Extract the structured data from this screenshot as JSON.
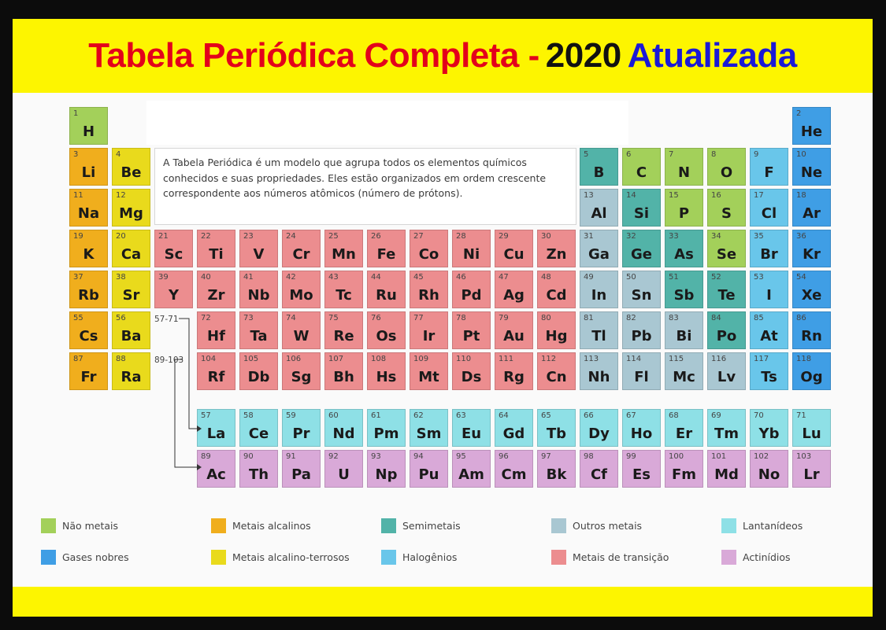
{
  "title": {
    "part1": "Tabela Periódica Completa -",
    "part2": "2020",
    "part3": "Atualizada"
  },
  "description": "A Tabela Periódica é um modelo que agrupa todos os elementos químicos conhecidos e suas propriedades. Eles estão organizados em ordem crescente correspondente aos números atômicos (número de prótons).",
  "ranges": {
    "lanthanides": "57-71",
    "actinides": "89-103"
  },
  "category_colors": {
    "nonmetal": "#a3d05a",
    "alkali": "#f0ae1d",
    "metalloid": "#52b3a8",
    "other_metal": "#a9c7d2",
    "lanthanide": "#8ee0e6",
    "noble_gas": "#3f9ee5",
    "alkaline_earth": "#e9da1c",
    "halogen": "#69c6ea",
    "transition": "#ec8d8f",
    "actinide": "#d9a9d8"
  },
  "legend": [
    {
      "key": "nonmetal",
      "label": "Não metais"
    },
    {
      "key": "alkali",
      "label": "Metais alcalinos"
    },
    {
      "key": "metalloid",
      "label": "Semimetais"
    },
    {
      "key": "other_metal",
      "label": "Outros metais"
    },
    {
      "key": "lanthanide",
      "label": "Lantanídeos"
    },
    {
      "key": "noble_gas",
      "label": "Gases nobres"
    },
    {
      "key": "alkaline_earth",
      "label": "Metais alcalino-terrosos"
    },
    {
      "key": "halogen",
      "label": "Halogênios"
    },
    {
      "key": "transition",
      "label": "Metais de transição"
    },
    {
      "key": "actinide",
      "label": "Actinídios"
    }
  ],
  "elements": [
    {
      "n": 1,
      "s": "H",
      "c": "nonmetal",
      "row": 1,
      "col": 1
    },
    {
      "n": 2,
      "s": "He",
      "c": "noble_gas",
      "row": 1,
      "col": 18
    },
    {
      "n": 3,
      "s": "Li",
      "c": "alkali",
      "row": 2,
      "col": 1
    },
    {
      "n": 4,
      "s": "Be",
      "c": "alkaline_earth",
      "row": 2,
      "col": 2
    },
    {
      "n": 5,
      "s": "B",
      "c": "metalloid",
      "row": 2,
      "col": 13
    },
    {
      "n": 6,
      "s": "C",
      "c": "nonmetal",
      "row": 2,
      "col": 14
    },
    {
      "n": 7,
      "s": "N",
      "c": "nonmetal",
      "row": 2,
      "col": 15
    },
    {
      "n": 8,
      "s": "O",
      "c": "nonmetal",
      "row": 2,
      "col": 16
    },
    {
      "n": 9,
      "s": "F",
      "c": "halogen",
      "row": 2,
      "col": 17
    },
    {
      "n": 10,
      "s": "Ne",
      "c": "noble_gas",
      "row": 2,
      "col": 18
    },
    {
      "n": 11,
      "s": "Na",
      "c": "alkali",
      "row": 3,
      "col": 1
    },
    {
      "n": 12,
      "s": "Mg",
      "c": "alkaline_earth",
      "row": 3,
      "col": 2
    },
    {
      "n": 13,
      "s": "Al",
      "c": "other_metal",
      "row": 3,
      "col": 13
    },
    {
      "n": 14,
      "s": "Si",
      "c": "metalloid",
      "row": 3,
      "col": 14
    },
    {
      "n": 15,
      "s": "P",
      "c": "nonmetal",
      "row": 3,
      "col": 15
    },
    {
      "n": 16,
      "s": "S",
      "c": "nonmetal",
      "row": 3,
      "col": 16
    },
    {
      "n": 17,
      "s": "Cl",
      "c": "halogen",
      "row": 3,
      "col": 17
    },
    {
      "n": 18,
      "s": "Ar",
      "c": "noble_gas",
      "row": 3,
      "col": 18
    },
    {
      "n": 19,
      "s": "K",
      "c": "alkali",
      "row": 4,
      "col": 1
    },
    {
      "n": 20,
      "s": "Ca",
      "c": "alkaline_earth",
      "row": 4,
      "col": 2
    },
    {
      "n": 21,
      "s": "Sc",
      "c": "transition",
      "row": 4,
      "col": 3
    },
    {
      "n": 22,
      "s": "Ti",
      "c": "transition",
      "row": 4,
      "col": 4
    },
    {
      "n": 23,
      "s": "V",
      "c": "transition",
      "row": 4,
      "col": 5
    },
    {
      "n": 24,
      "s": "Cr",
      "c": "transition",
      "row": 4,
      "col": 6
    },
    {
      "n": 25,
      "s": "Mn",
      "c": "transition",
      "row": 4,
      "col": 7
    },
    {
      "n": 26,
      "s": "Fe",
      "c": "transition",
      "row": 4,
      "col": 8
    },
    {
      "n": 27,
      "s": "Co",
      "c": "transition",
      "row": 4,
      "col": 9
    },
    {
      "n": 28,
      "s": "Ni",
      "c": "transition",
      "row": 4,
      "col": 10
    },
    {
      "n": 29,
      "s": "Cu",
      "c": "transition",
      "row": 4,
      "col": 11
    },
    {
      "n": 30,
      "s": "Zn",
      "c": "transition",
      "row": 4,
      "col": 12
    },
    {
      "n": 31,
      "s": "Ga",
      "c": "other_metal",
      "row": 4,
      "col": 13
    },
    {
      "n": 32,
      "s": "Ge",
      "c": "metalloid",
      "row": 4,
      "col": 14
    },
    {
      "n": 33,
      "s": "As",
      "c": "metalloid",
      "row": 4,
      "col": 15
    },
    {
      "n": 34,
      "s": "Se",
      "c": "nonmetal",
      "row": 4,
      "col": 16
    },
    {
      "n": 35,
      "s": "Br",
      "c": "halogen",
      "row": 4,
      "col": 17
    },
    {
      "n": 36,
      "s": "Kr",
      "c": "noble_gas",
      "row": 4,
      "col": 18
    },
    {
      "n": 37,
      "s": "Rb",
      "c": "alkali",
      "row": 5,
      "col": 1
    },
    {
      "n": 38,
      "s": "Sr",
      "c": "alkaline_earth",
      "row": 5,
      "col": 2
    },
    {
      "n": 39,
      "s": "Y",
      "c": "transition",
      "row": 5,
      "col": 3
    },
    {
      "n": 40,
      "s": "Zr",
      "c": "transition",
      "row": 5,
      "col": 4
    },
    {
      "n": 41,
      "s": "Nb",
      "c": "transition",
      "row": 5,
      "col": 5
    },
    {
      "n": 42,
      "s": "Mo",
      "c": "transition",
      "row": 5,
      "col": 6
    },
    {
      "n": 43,
      "s": "Tc",
      "c": "transition",
      "row": 5,
      "col": 7
    },
    {
      "n": 44,
      "s": "Ru",
      "c": "transition",
      "row": 5,
      "col": 8
    },
    {
      "n": 45,
      "s": "Rh",
      "c": "transition",
      "row": 5,
      "col": 9
    },
    {
      "n": 46,
      "s": "Pd",
      "c": "transition",
      "row": 5,
      "col": 10
    },
    {
      "n": 47,
      "s": "Ag",
      "c": "transition",
      "row": 5,
      "col": 11
    },
    {
      "n": 48,
      "s": "Cd",
      "c": "transition",
      "row": 5,
      "col": 12
    },
    {
      "n": 49,
      "s": "In",
      "c": "other_metal",
      "row": 5,
      "col": 13
    },
    {
      "n": 50,
      "s": "Sn",
      "c": "other_metal",
      "row": 5,
      "col": 14
    },
    {
      "n": 51,
      "s": "Sb",
      "c": "metalloid",
      "row": 5,
      "col": 15
    },
    {
      "n": 52,
      "s": "Te",
      "c": "metalloid",
      "row": 5,
      "col": 16
    },
    {
      "n": 53,
      "s": "I",
      "c": "halogen",
      "row": 5,
      "col": 17
    },
    {
      "n": 54,
      "s": "Xe",
      "c": "noble_gas",
      "row": 5,
      "col": 18
    },
    {
      "n": 55,
      "s": "Cs",
      "c": "alkali",
      "row": 6,
      "col": 1
    },
    {
      "n": 56,
      "s": "Ba",
      "c": "alkaline_earth",
      "row": 6,
      "col": 2
    },
    {
      "n": 72,
      "s": "Hf",
      "c": "transition",
      "row": 6,
      "col": 4
    },
    {
      "n": 73,
      "s": "Ta",
      "c": "transition",
      "row": 6,
      "col": 5
    },
    {
      "n": 74,
      "s": "W",
      "c": "transition",
      "row": 6,
      "col": 6
    },
    {
      "n": 75,
      "s": "Re",
      "c": "transition",
      "row": 6,
      "col": 7
    },
    {
      "n": 76,
      "s": "Os",
      "c": "transition",
      "row": 6,
      "col": 8
    },
    {
      "n": 77,
      "s": "Ir",
      "c": "transition",
      "row": 6,
      "col": 9
    },
    {
      "n": 78,
      "s": "Pt",
      "c": "transition",
      "row": 6,
      "col": 10
    },
    {
      "n": 79,
      "s": "Au",
      "c": "transition",
      "row": 6,
      "col": 11
    },
    {
      "n": 80,
      "s": "Hg",
      "c": "transition",
      "row": 6,
      "col": 12
    },
    {
      "n": 81,
      "s": "Tl",
      "c": "other_metal",
      "row": 6,
      "col": 13
    },
    {
      "n": 82,
      "s": "Pb",
      "c": "other_metal",
      "row": 6,
      "col": 14
    },
    {
      "n": 83,
      "s": "Bi",
      "c": "other_metal",
      "row": 6,
      "col": 15
    },
    {
      "n": 84,
      "s": "Po",
      "c": "metalloid",
      "row": 6,
      "col": 16
    },
    {
      "n": 85,
      "s": "At",
      "c": "halogen",
      "row": 6,
      "col": 17
    },
    {
      "n": 86,
      "s": "Rn",
      "c": "noble_gas",
      "row": 6,
      "col": 18
    },
    {
      "n": 87,
      "s": "Fr",
      "c": "alkali",
      "row": 7,
      "col": 1
    },
    {
      "n": 88,
      "s": "Ra",
      "c": "alkaline_earth",
      "row": 7,
      "col": 2
    },
    {
      "n": 104,
      "s": "Rf",
      "c": "transition",
      "row": 7,
      "col": 4
    },
    {
      "n": 105,
      "s": "Db",
      "c": "transition",
      "row": 7,
      "col": 5
    },
    {
      "n": 106,
      "s": "Sg",
      "c": "transition",
      "row": 7,
      "col": 6
    },
    {
      "n": 107,
      "s": "Bh",
      "c": "transition",
      "row": 7,
      "col": 7
    },
    {
      "n": 108,
      "s": "Hs",
      "c": "transition",
      "row": 7,
      "col": 8
    },
    {
      "n": 109,
      "s": "Mt",
      "c": "transition",
      "row": 7,
      "col": 9
    },
    {
      "n": 110,
      "s": "Ds",
      "c": "transition",
      "row": 7,
      "col": 10
    },
    {
      "n": 111,
      "s": "Rg",
      "c": "transition",
      "row": 7,
      "col": 11
    },
    {
      "n": 112,
      "s": "Cn",
      "c": "transition",
      "row": 7,
      "col": 12
    },
    {
      "n": 113,
      "s": "Nh",
      "c": "other_metal",
      "row": 7,
      "col": 13
    },
    {
      "n": 114,
      "s": "Fl",
      "c": "other_metal",
      "row": 7,
      "col": 14
    },
    {
      "n": 115,
      "s": "Mc",
      "c": "other_metal",
      "row": 7,
      "col": 15
    },
    {
      "n": 116,
      "s": "Lv",
      "c": "other_metal",
      "row": 7,
      "col": 16
    },
    {
      "n": 117,
      "s": "Ts",
      "c": "halogen",
      "row": 7,
      "col": 17
    },
    {
      "n": 118,
      "s": "Og",
      "c": "noble_gas",
      "row": 7,
      "col": 18
    },
    {
      "n": 57,
      "s": "La",
      "c": "lanthanide",
      "row": 9,
      "col": 4
    },
    {
      "n": 58,
      "s": "Ce",
      "c": "lanthanide",
      "row": 9,
      "col": 5
    },
    {
      "n": 59,
      "s": "Pr",
      "c": "lanthanide",
      "row": 9,
      "col": 6
    },
    {
      "n": 60,
      "s": "Nd",
      "c": "lanthanide",
      "row": 9,
      "col": 7
    },
    {
      "n": 61,
      "s": "Pm",
      "c": "lanthanide",
      "row": 9,
      "col": 8
    },
    {
      "n": 62,
      "s": "Sm",
      "c": "lanthanide",
      "row": 9,
      "col": 9
    },
    {
      "n": 63,
      "s": "Eu",
      "c": "lanthanide",
      "row": 9,
      "col": 10
    },
    {
      "n": 64,
      "s": "Gd",
      "c": "lanthanide",
      "row": 9,
      "col": 11
    },
    {
      "n": 65,
      "s": "Tb",
      "c": "lanthanide",
      "row": 9,
      "col": 12
    },
    {
      "n": 66,
      "s": "Dy",
      "c": "lanthanide",
      "row": 9,
      "col": 13
    },
    {
      "n": 67,
      "s": "Ho",
      "c": "lanthanide",
      "row": 9,
      "col": 14
    },
    {
      "n": 68,
      "s": "Er",
      "c": "lanthanide",
      "row": 9,
      "col": 15
    },
    {
      "n": 69,
      "s": "Tm",
      "c": "lanthanide",
      "row": 9,
      "col": 16
    },
    {
      "n": 70,
      "s": "Yb",
      "c": "lanthanide",
      "row": 9,
      "col": 17
    },
    {
      "n": 71,
      "s": "Lu",
      "c": "lanthanide",
      "row": 9,
      "col": 18
    },
    {
      "n": 89,
      "s": "Ac",
      "c": "actinide",
      "row": 10,
      "col": 4
    },
    {
      "n": 90,
      "s": "Th",
      "c": "actinide",
      "row": 10,
      "col": 5
    },
    {
      "n": 91,
      "s": "Pa",
      "c": "actinide",
      "row": 10,
      "col": 6
    },
    {
      "n": 92,
      "s": "U",
      "c": "actinide",
      "row": 10,
      "col": 7
    },
    {
      "n": 93,
      "s": "Np",
      "c": "actinide",
      "row": 10,
      "col": 8
    },
    {
      "n": 94,
      "s": "Pu",
      "c": "actinide",
      "row": 10,
      "col": 9
    },
    {
      "n": 95,
      "s": "Am",
      "c": "actinide",
      "row": 10,
      "col": 10
    },
    {
      "n": 96,
      "s": "Cm",
      "c": "actinide",
      "row": 10,
      "col": 11
    },
    {
      "n": 97,
      "s": "Bk",
      "c": "actinide",
      "row": 10,
      "col": 12
    },
    {
      "n": 98,
      "s": "Cf",
      "c": "actinide",
      "row": 10,
      "col": 13
    },
    {
      "n": 99,
      "s": "Es",
      "c": "actinide",
      "row": 10,
      "col": 14
    },
    {
      "n": 100,
      "s": "Fm",
      "c": "actinide",
      "row": 10,
      "col": 15
    },
    {
      "n": 101,
      "s": "Md",
      "c": "actinide",
      "row": 10,
      "col": 16
    },
    {
      "n": 102,
      "s": "No",
      "c": "actinide",
      "row": 10,
      "col": 17
    },
    {
      "n": 103,
      "s": "Lr",
      "c": "actinide",
      "row": 10,
      "col": 18
    }
  ]
}
